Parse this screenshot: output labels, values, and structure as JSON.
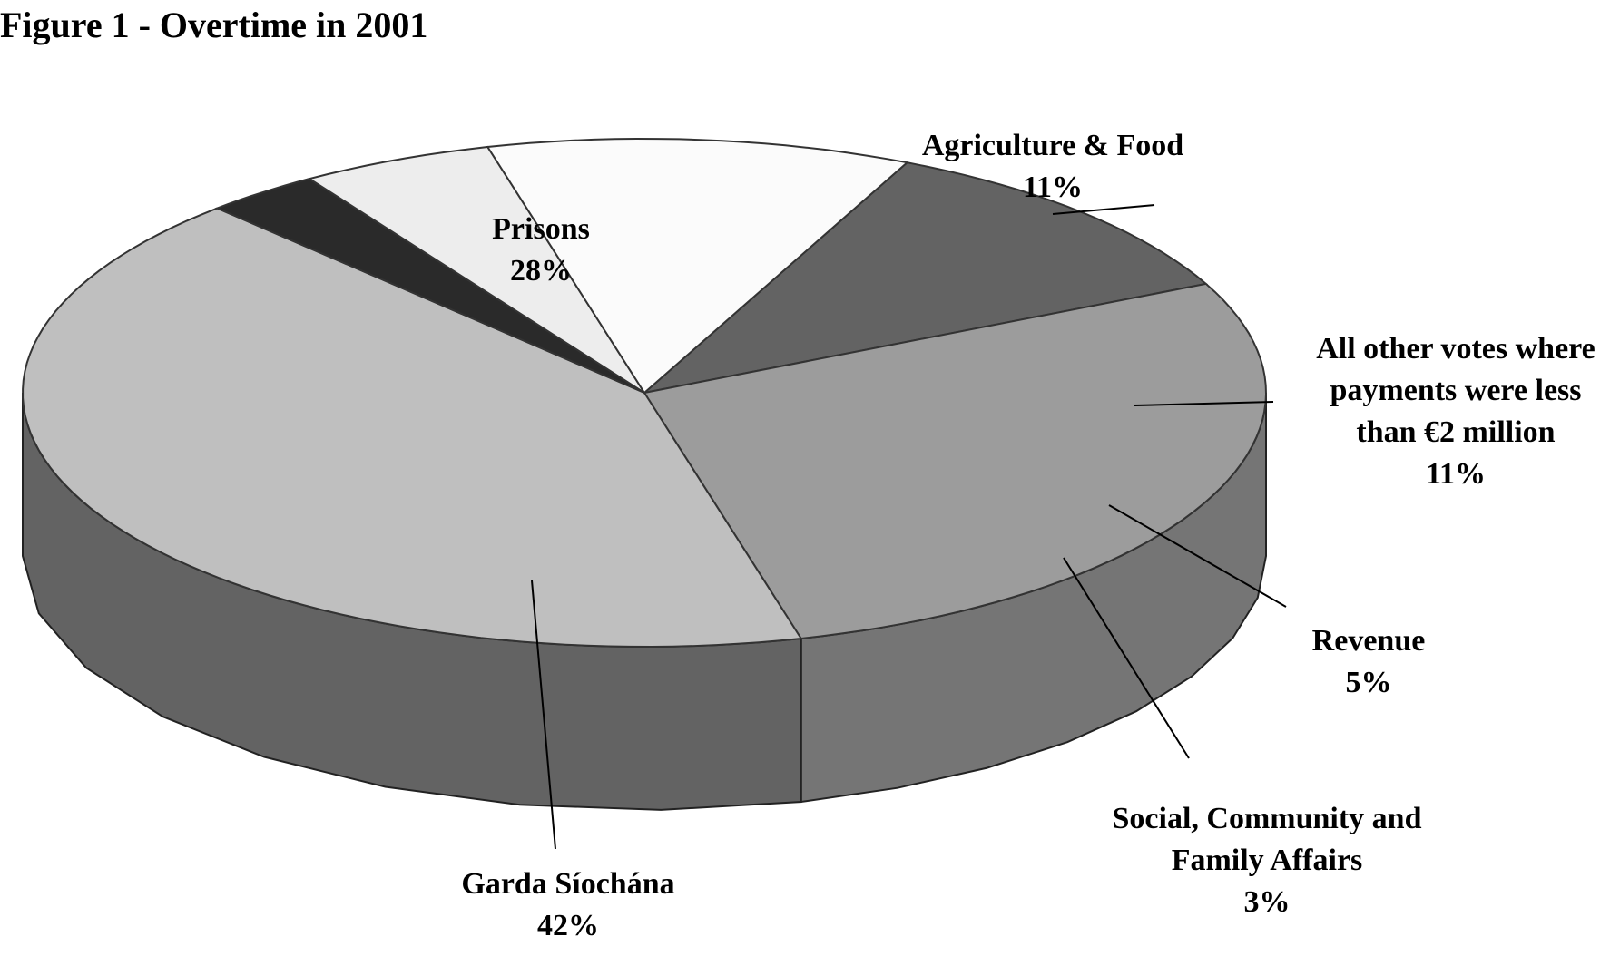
{
  "chart_data": {
    "type": "pie",
    "title": "Figure 1 - Overtime in 2001",
    "slices": [
      {
        "key": "agriculture",
        "label": "Agriculture & Food",
        "value": 11,
        "value_label": "11%",
        "color": "#636363"
      },
      {
        "key": "prisons",
        "label": "Prisons",
        "value": 28,
        "value_label": "28%",
        "color": "#9c9c9c"
      },
      {
        "key": "garda",
        "label": "Garda Síochána",
        "value": 42,
        "value_label": "42%",
        "color": "#bfbfbf"
      },
      {
        "key": "social",
        "label": "Social, Community and Family Affairs",
        "value": 3,
        "value_label": "3%",
        "color": "#2a2a2a"
      },
      {
        "key": "revenue",
        "label": "Revenue",
        "value": 5,
        "value_label": "5%",
        "color": "#ededed"
      },
      {
        "key": "other",
        "label": "All other votes where payments were less than €2 million",
        "value": 11,
        "value_label": "11%",
        "color": "#fbfbfb"
      }
    ],
    "legend": "none",
    "three_d": true
  },
  "labels": {
    "agriculture": {
      "lines": [
        "Agriculture & Food"
      ],
      "pct": "11%"
    },
    "prisons": {
      "lines": [
        "Prisons"
      ],
      "pct": "28%"
    },
    "garda": {
      "lines": [
        "Garda Síochána"
      ],
      "pct": "42%"
    },
    "social": {
      "lines": [
        "Social, Community and",
        "Family Affairs"
      ],
      "pct": "3%"
    },
    "revenue": {
      "lines": [
        "Revenue"
      ],
      "pct": "5%"
    },
    "other": {
      "lines": [
        "All other votes where",
        "payments were less",
        "than €2 million"
      ],
      "pct": "11%"
    }
  }
}
